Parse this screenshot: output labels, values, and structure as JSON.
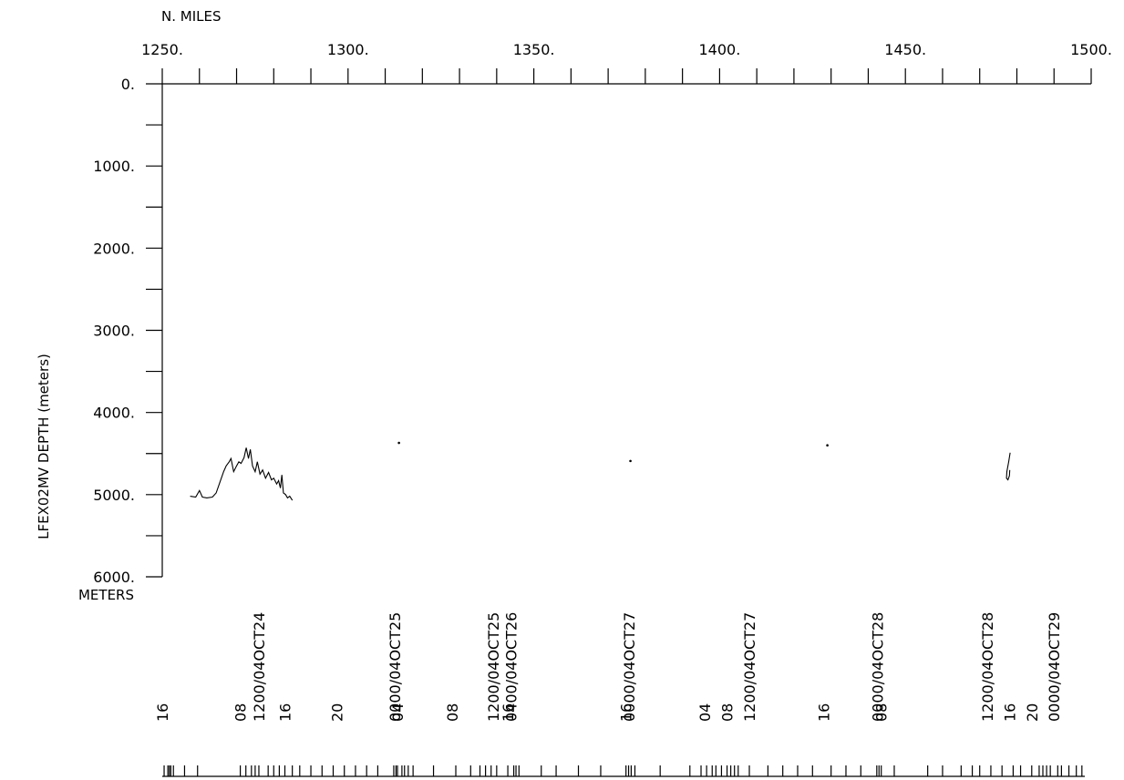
{
  "chart_data": {
    "type": "line",
    "x_axis_top": {
      "label": "N. MILES",
      "range": [
        1250,
        1500
      ],
      "ticks": [
        "1250.",
        "1300.",
        "1350.",
        "1400.",
        "1450.",
        "1500."
      ],
      "tick_values": [
        1250,
        1300,
        1350,
        1400,
        1450,
        1500
      ],
      "minor_step": 10
    },
    "y_axis": {
      "label": "LFEX02MV   DEPTH  (meters)",
      "unit_label": "METERS",
      "range": [
        0,
        6000
      ],
      "inverted": true,
      "ticks": [
        "0.",
        "1000.",
        "2000.",
        "3000.",
        "4000.",
        "5000.",
        "6000."
      ],
      "tick_values": [
        0,
        1000,
        2000,
        3000,
        4000,
        5000,
        6000
      ],
      "minor_step": 500
    },
    "series": [
      {
        "points": [
          [
            1257.5,
            5020
          ],
          [
            1259,
            5030
          ],
          [
            1260,
            4950
          ],
          [
            1260.8,
            5030
          ],
          [
            1262,
            5040
          ],
          [
            1263.5,
            5030
          ],
          [
            1264.5,
            4980
          ],
          [
            1265.5,
            4850
          ],
          [
            1266.5,
            4720
          ],
          [
            1267.2,
            4650
          ],
          [
            1268,
            4600
          ],
          [
            1268.5,
            4560
          ],
          [
            1269.2,
            4720
          ],
          [
            1270,
            4650
          ],
          [
            1270.6,
            4600
          ],
          [
            1271.2,
            4620
          ],
          [
            1272,
            4550
          ],
          [
            1272.6,
            4430
          ],
          [
            1273.2,
            4560
          ],
          [
            1273.7,
            4450
          ],
          [
            1274.3,
            4650
          ],
          [
            1275,
            4720
          ],
          [
            1275.6,
            4600
          ],
          [
            1276.3,
            4750
          ],
          [
            1277,
            4700
          ],
          [
            1277.8,
            4800
          ],
          [
            1278.6,
            4730
          ],
          [
            1279.4,
            4820
          ],
          [
            1280,
            4800
          ],
          [
            1280.8,
            4870
          ],
          [
            1281.3,
            4830
          ],
          [
            1281.8,
            4920
          ],
          [
            1282.2,
            4760
          ],
          [
            1282.6,
            4980
          ],
          [
            1283.2,
            5000
          ],
          [
            1283.7,
            5040
          ],
          [
            1284.3,
            5020
          ],
          [
            1285,
            5070
          ]
        ]
      },
      {
        "points": [
          [
            1313.7,
            4370
          ]
        ]
      },
      {
        "points": [
          [
            1376,
            4590
          ]
        ]
      },
      {
        "points": [
          [
            1429,
            4400
          ]
        ]
      },
      {
        "points": [
          [
            1478.2,
            4490
          ],
          [
            1477.8,
            4600
          ],
          [
            1477.3,
            4720
          ],
          [
            1477.2,
            4800
          ],
          [
            1477.6,
            4820
          ],
          [
            1478.0,
            4770
          ],
          [
            1478.1,
            4700
          ]
        ]
      }
    ],
    "time_labels": [
      {
        "x": 1250.0,
        "text": "16"
      },
      {
        "x": 1271.0,
        "text": "08"
      },
      {
        "x": 1276.0,
        "text": "1200/04OCT24"
      },
      {
        "x": 1283.0,
        "text": "16"
      },
      {
        "x": 1297.0,
        "text": "20"
      },
      {
        "x": 1312.5,
        "text": "0000/04OCT25"
      },
      {
        "x": 1313.3,
        "text": "04"
      },
      {
        "x": 1328.0,
        "text": "08"
      },
      {
        "x": 1339.0,
        "text": "1200/04OCT25"
      },
      {
        "x": 1343.0,
        "text": "16"
      },
      {
        "x": 1343.8,
        "text": "0400/04OCT26"
      },
      {
        "x": 1374.8,
        "text": "16"
      },
      {
        "x": 1375.6,
        "text": "0000/04OCT27"
      },
      {
        "x": 1396.0,
        "text": "04"
      },
      {
        "x": 1402.0,
        "text": "08"
      },
      {
        "x": 1408.0,
        "text": "1200/04OCT27"
      },
      {
        "x": 1428.0,
        "text": "16"
      },
      {
        "x": 1442.5,
        "text": "0000/04OCT28"
      },
      {
        "x": 1443.5,
        "text": "08"
      },
      {
        "x": 1472.0,
        "text": "1200/04OCT28"
      },
      {
        "x": 1478.0,
        "text": "16"
      },
      {
        "x": 1484.0,
        "text": "20"
      },
      {
        "x": 1490.0,
        "text": "0000/04OCT29"
      }
    ],
    "time_marks": [
      1250.5,
      1251.5,
      1251.9,
      1252.3,
      1253,
      1256,
      1259.5,
      1271,
      1272.5,
      1274,
      1275,
      1276,
      1278.5,
      1280,
      1281.5,
      1283,
      1285,
      1287,
      1290,
      1293,
      1296,
      1299,
      1302,
      1305,
      1308,
      1312.3,
      1312.9,
      1313.3,
      1314.5,
      1315.2,
      1316.2,
      1317.5,
      1323,
      1329,
      1333,
      1335.5,
      1337,
      1338.5,
      1340,
      1343,
      1344.6,
      1345.2,
      1346,
      1352,
      1356,
      1362,
      1368,
      1374.8,
      1375.5,
      1376.2,
      1377.2,
      1384,
      1392,
      1395,
      1396.5,
      1398,
      1399,
      1400.5,
      1402,
      1403,
      1404,
      1405,
      1408,
      1413,
      1417,
      1421,
      1425,
      1430,
      1434,
      1438,
      1442.3,
      1442.9,
      1443.5,
      1447,
      1456,
      1460,
      1465,
      1468,
      1470,
      1473,
      1476,
      1479,
      1481,
      1484,
      1486,
      1487,
      1488,
      1489,
      1491,
      1492,
      1494,
      1496,
      1497.5
    ]
  }
}
